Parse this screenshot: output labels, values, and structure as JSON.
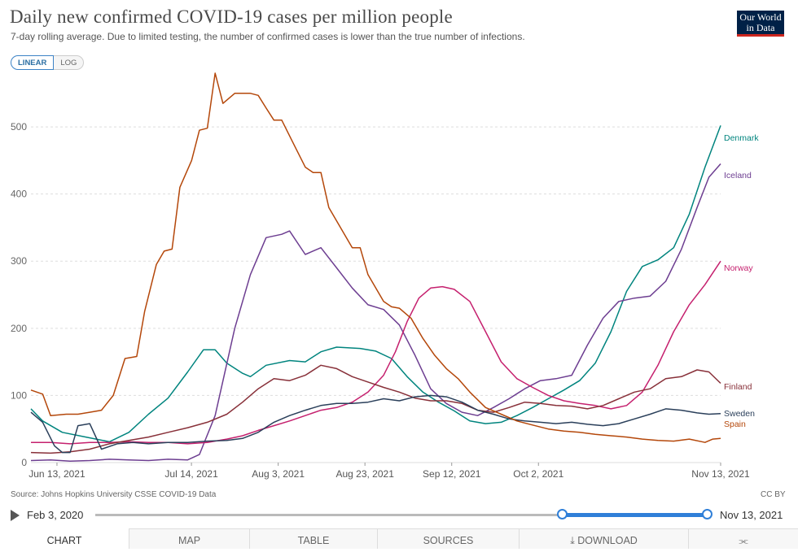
{
  "header": {
    "title": "Daily new confirmed COVID-19 cases per million people",
    "subtitle": "7-day rolling average. Due to limited testing, the number of confirmed cases is lower than the true number of infections.",
    "logo_line1": "Our World",
    "logo_line2": "in Data"
  },
  "scale_toggle": {
    "linear": "LINEAR",
    "log": "LOG"
  },
  "footer": {
    "source": "Source: Johns Hopkins University CSSE COVID-19 Data",
    "license": "CC BY"
  },
  "timeline": {
    "start_label": "Feb 3, 2020",
    "end_label": "Nov 13, 2021"
  },
  "tabs": {
    "chart": "CHART",
    "map": "MAP",
    "table": "TABLE",
    "sources": "SOURCES",
    "download": "DOWNLOAD"
  },
  "colors": {
    "Denmark": "#00847e",
    "Iceland": "#6d3e91",
    "Norway": "#c5206e",
    "Finland": "#883039",
    "Sweden": "#2a3f5a",
    "Spain": "#b4470a",
    "grid": "#dddddd",
    "accent": "#2f7fd8"
  },
  "chart_data": {
    "type": "line",
    "title": "Daily new confirmed COVID-19 cases per million people",
    "xlabel": "",
    "ylabel": "",
    "x_start": "2021-06-07",
    "x_end": "2021-11-13",
    "ylim": [
      0,
      580
    ],
    "yticks": [
      0,
      100,
      200,
      300,
      400,
      500
    ],
    "xtick_labels": [
      "Jun 13, 2021",
      "Jul 14, 2021",
      "Aug 3, 2021",
      "Aug 23, 2021",
      "Sep 12, 2021",
      "Oct 2, 2021",
      "Nov 13, 2021"
    ],
    "xtick_days": [
      6,
      37,
      57,
      77,
      97,
      117,
      159
    ],
    "legend": "end-of-line labels",
    "series": [
      {
        "name": "Denmark",
        "points": [
          [
            0,
            80
          ],
          [
            3,
            62
          ],
          [
            8,
            45
          ],
          [
            14,
            38
          ],
          [
            20,
            31
          ],
          [
            25,
            45
          ],
          [
            30,
            72
          ],
          [
            35,
            96
          ],
          [
            40,
            135
          ],
          [
            44,
            168
          ],
          [
            47,
            168
          ],
          [
            50,
            148
          ],
          [
            54,
            133
          ],
          [
            56,
            128
          ],
          [
            60,
            145
          ],
          [
            66,
            152
          ],
          [
            70,
            150
          ],
          [
            74,
            165
          ],
          [
            78,
            172
          ],
          [
            84,
            170
          ],
          [
            88,
            166
          ],
          [
            92,
            155
          ],
          [
            96,
            128
          ],
          [
            100,
            105
          ],
          [
            104,
            90
          ],
          [
            108,
            77
          ],
          [
            112,
            62
          ],
          [
            116,
            58
          ],
          [
            120,
            60
          ],
          [
            124,
            70
          ],
          [
            128,
            82
          ],
          [
            132,
            95
          ],
          [
            136,
            108
          ],
          [
            140,
            122
          ],
          [
            144,
            148
          ],
          [
            148,
            195
          ],
          [
            152,
            255
          ],
          [
            156,
            292
          ],
          [
            160,
            302
          ],
          [
            164,
            320
          ],
          [
            168,
            370
          ],
          [
            172,
            440
          ],
          [
            176,
            502
          ]
        ]
      },
      {
        "name": "Iceland",
        "points": [
          [
            0,
            3
          ],
          [
            5,
            4
          ],
          [
            10,
            2
          ],
          [
            15,
            3
          ],
          [
            20,
            5
          ],
          [
            25,
            4
          ],
          [
            30,
            3
          ],
          [
            35,
            5
          ],
          [
            40,
            4
          ],
          [
            43,
            12
          ],
          [
            47,
            70
          ],
          [
            52,
            200
          ],
          [
            56,
            280
          ],
          [
            60,
            335
          ],
          [
            64,
            340
          ],
          [
            66,
            345
          ],
          [
            70,
            310
          ],
          [
            74,
            320
          ],
          [
            78,
            290
          ],
          [
            82,
            260
          ],
          [
            86,
            235
          ],
          [
            90,
            228
          ],
          [
            94,
            205
          ],
          [
            98,
            160
          ],
          [
            102,
            110
          ],
          [
            106,
            88
          ],
          [
            110,
            75
          ],
          [
            114,
            70
          ],
          [
            118,
            82
          ],
          [
            122,
            95
          ],
          [
            126,
            110
          ],
          [
            130,
            122
          ],
          [
            134,
            125
          ],
          [
            138,
            130
          ],
          [
            142,
            175
          ],
          [
            146,
            215
          ],
          [
            150,
            240
          ],
          [
            154,
            245
          ],
          [
            158,
            248
          ],
          [
            162,
            270
          ],
          [
            166,
            318
          ],
          [
            170,
            380
          ],
          [
            173,
            425
          ],
          [
            176,
            445
          ]
        ]
      },
      {
        "name": "Norway",
        "points": [
          [
            0,
            30
          ],
          [
            5,
            30
          ],
          [
            10,
            28
          ],
          [
            15,
            30
          ],
          [
            20,
            30
          ],
          [
            25,
            31
          ],
          [
            30,
            30
          ],
          [
            35,
            30
          ],
          [
            40,
            28
          ],
          [
            45,
            30
          ],
          [
            50,
            35
          ],
          [
            54,
            40
          ],
          [
            58,
            48
          ],
          [
            62,
            55
          ],
          [
            66,
            62
          ],
          [
            70,
            70
          ],
          [
            74,
            78
          ],
          [
            78,
            82
          ],
          [
            82,
            90
          ],
          [
            86,
            105
          ],
          [
            90,
            130
          ],
          [
            93,
            165
          ],
          [
            96,
            210
          ],
          [
            99,
            245
          ],
          [
            102,
            260
          ],
          [
            105,
            262
          ],
          [
            108,
            258
          ],
          [
            112,
            240
          ],
          [
            116,
            195
          ],
          [
            120,
            150
          ],
          [
            124,
            125
          ],
          [
            128,
            112
          ],
          [
            132,
            100
          ],
          [
            136,
            92
          ],
          [
            140,
            88
          ],
          [
            144,
            85
          ],
          [
            148,
            80
          ],
          [
            152,
            85
          ],
          [
            156,
            105
          ],
          [
            160,
            145
          ],
          [
            164,
            195
          ],
          [
            168,
            235
          ],
          [
            172,
            265
          ],
          [
            176,
            300
          ]
        ]
      },
      {
        "name": "Finland",
        "points": [
          [
            0,
            15
          ],
          [
            5,
            14
          ],
          [
            10,
            16
          ],
          [
            15,
            20
          ],
          [
            20,
            28
          ],
          [
            25,
            33
          ],
          [
            30,
            38
          ],
          [
            35,
            45
          ],
          [
            40,
            52
          ],
          [
            45,
            60
          ],
          [
            50,
            72
          ],
          [
            54,
            90
          ],
          [
            58,
            110
          ],
          [
            62,
            125
          ],
          [
            66,
            122
          ],
          [
            70,
            130
          ],
          [
            74,
            145
          ],
          [
            78,
            140
          ],
          [
            82,
            128
          ],
          [
            86,
            120
          ],
          [
            90,
            112
          ],
          [
            94,
            105
          ],
          [
            98,
            96
          ],
          [
            102,
            92
          ],
          [
            106,
            92
          ],
          [
            110,
            88
          ],
          [
            114,
            78
          ],
          [
            118,
            75
          ],
          [
            122,
            82
          ],
          [
            126,
            90
          ],
          [
            130,
            88
          ],
          [
            134,
            85
          ],
          [
            138,
            84
          ],
          [
            142,
            80
          ],
          [
            146,
            85
          ],
          [
            150,
            95
          ],
          [
            154,
            105
          ],
          [
            158,
            110
          ],
          [
            162,
            125
          ],
          [
            166,
            128
          ],
          [
            170,
            138
          ],
          [
            173,
            135
          ],
          [
            176,
            118
          ]
        ]
      },
      {
        "name": "Sweden",
        "points": [
          [
            0,
            75
          ],
          [
            3,
            60
          ],
          [
            6,
            25
          ],
          [
            8,
            15
          ],
          [
            10,
            15
          ],
          [
            12,
            55
          ],
          [
            15,
            58
          ],
          [
            18,
            20
          ],
          [
            22,
            28
          ],
          [
            26,
            30
          ],
          [
            30,
            28
          ],
          [
            35,
            30
          ],
          [
            40,
            30
          ],
          [
            45,
            32
          ],
          [
            50,
            33
          ],
          [
            54,
            36
          ],
          [
            58,
            45
          ],
          [
            62,
            60
          ],
          [
            66,
            70
          ],
          [
            70,
            78
          ],
          [
            74,
            85
          ],
          [
            78,
            88
          ],
          [
            82,
            88
          ],
          [
            86,
            90
          ],
          [
            90,
            95
          ],
          [
            94,
            92
          ],
          [
            98,
            98
          ],
          [
            102,
            100
          ],
          [
            106,
            98
          ],
          [
            110,
            90
          ],
          [
            114,
            78
          ],
          [
            118,
            72
          ],
          [
            122,
            65
          ],
          [
            126,
            62
          ],
          [
            130,
            60
          ],
          [
            134,
            58
          ],
          [
            138,
            60
          ],
          [
            142,
            57
          ],
          [
            146,
            55
          ],
          [
            150,
            58
          ],
          [
            154,
            65
          ],
          [
            158,
            72
          ],
          [
            162,
            80
          ],
          [
            166,
            78
          ],
          [
            170,
            74
          ],
          [
            173,
            72
          ],
          [
            176,
            73
          ]
        ]
      },
      {
        "name": "Spain",
        "points": [
          [
            0,
            108
          ],
          [
            3,
            102
          ],
          [
            5,
            70
          ],
          [
            9,
            72
          ],
          [
            12,
            72
          ],
          [
            15,
            75
          ],
          [
            18,
            78
          ],
          [
            21,
            100
          ],
          [
            24,
            155
          ],
          [
            27,
            158
          ],
          [
            29,
            225
          ],
          [
            32,
            295
          ],
          [
            34,
            315
          ],
          [
            36,
            318
          ],
          [
            38,
            410
          ],
          [
            41,
            450
          ],
          [
            43,
            495
          ],
          [
            45,
            498
          ],
          [
            47,
            580
          ],
          [
            49,
            535
          ],
          [
            52,
            550
          ],
          [
            56,
            550
          ],
          [
            58,
            547
          ],
          [
            60,
            528
          ],
          [
            62,
            510
          ],
          [
            64,
            510
          ],
          [
            67,
            475
          ],
          [
            70,
            440
          ],
          [
            72,
            432
          ],
          [
            74,
            432
          ],
          [
            76,
            380
          ],
          [
            78,
            360
          ],
          [
            80,
            340
          ],
          [
            82,
            320
          ],
          [
            84,
            320
          ],
          [
            86,
            280
          ],
          [
            88,
            260
          ],
          [
            90,
            240
          ],
          [
            92,
            232
          ],
          [
            94,
            230
          ],
          [
            97,
            215
          ],
          [
            100,
            185
          ],
          [
            103,
            160
          ],
          [
            106,
            140
          ],
          [
            109,
            125
          ],
          [
            112,
            105
          ],
          [
            116,
            82
          ],
          [
            120,
            72
          ],
          [
            124,
            62
          ],
          [
            128,
            56
          ],
          [
            132,
            50
          ],
          [
            136,
            47
          ],
          [
            140,
            45
          ],
          [
            144,
            42
          ],
          [
            148,
            40
          ],
          [
            152,
            38
          ],
          [
            156,
            35
          ],
          [
            160,
            33
          ],
          [
            164,
            32
          ],
          [
            168,
            35
          ],
          [
            172,
            30
          ],
          [
            174,
            35
          ],
          [
            176,
            36
          ]
        ]
      }
    ]
  }
}
